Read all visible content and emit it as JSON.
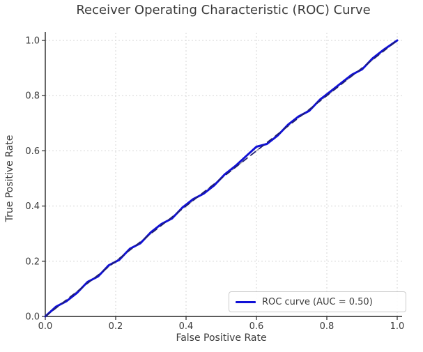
{
  "title": "Receiver Operating Characteristic (ROC) Curve",
  "colors": {
    "roc_line": "#1111d6",
    "chance_line_over": "#1f1f72",
    "chance_line_under": "#9b9b9b",
    "grid": "#d6d6d6",
    "spine": "#262626",
    "text": "#3b3b3b",
    "legend_border": "#cbcbcb"
  },
  "legend": {
    "position": "lower right"
  },
  "chart_data": {
    "type": "line",
    "title": "Receiver Operating Characteristic (ROC) Curve",
    "xlabel": "False Positive Rate",
    "ylabel": "True Positive Rate",
    "xlim": [
      0.0,
      1.0
    ],
    "ylim": [
      0.0,
      1.0
    ],
    "grid": true,
    "grid_style": "dotted",
    "legend_position": "lower right",
    "auc": 0.5,
    "xticks": [
      0.0,
      0.2,
      0.4,
      0.6,
      0.8,
      1.0
    ],
    "yticks": [
      0.0,
      0.2,
      0.4,
      0.6,
      0.8,
      1.0
    ],
    "xtick_labels": [
      "0.0",
      "0.2",
      "0.4",
      "0.6",
      "0.8",
      "1.0"
    ],
    "ytick_labels": [
      "0.0",
      "0.2",
      "0.4",
      "0.6",
      "0.8",
      "1.0"
    ],
    "series": [
      {
        "name": "ROC curve (AUC = 0.50)",
        "color": "#1111d6",
        "linestyle": "solid",
        "linewidth": 3,
        "x": [
          0.0,
          0.03,
          0.06,
          0.09,
          0.12,
          0.15,
          0.18,
          0.21,
          0.24,
          0.27,
          0.3,
          0.33,
          0.36,
          0.39,
          0.42,
          0.45,
          0.48,
          0.51,
          0.54,
          0.57,
          0.6,
          0.63,
          0.66,
          0.69,
          0.72,
          0.75,
          0.78,
          0.81,
          0.84,
          0.87,
          0.9,
          0.93,
          0.96,
          1.0
        ],
        "y": [
          0.0,
          0.035,
          0.055,
          0.085,
          0.125,
          0.145,
          0.185,
          0.205,
          0.245,
          0.265,
          0.305,
          0.335,
          0.355,
          0.395,
          0.425,
          0.445,
          0.475,
          0.515,
          0.545,
          0.58,
          0.615,
          0.625,
          0.655,
          0.695,
          0.725,
          0.745,
          0.785,
          0.815,
          0.845,
          0.875,
          0.895,
          0.935,
          0.965,
          1.0
        ]
      }
    ],
    "reference_lines": [
      {
        "name": "chance-diagonal-under",
        "x": [
          0.0,
          1.0
        ],
        "y": [
          0.0,
          1.0
        ],
        "color": "#9b9b9b",
        "linestyle": "dashed",
        "linewidth": 1.6,
        "layer": "below"
      },
      {
        "name": "chance-diagonal-over",
        "x": [
          0.0,
          1.0
        ],
        "y": [
          0.0,
          1.0
        ],
        "color": "#1f1f72",
        "linestyle": "dashed",
        "linewidth": 1.8,
        "layer": "above"
      }
    ]
  }
}
